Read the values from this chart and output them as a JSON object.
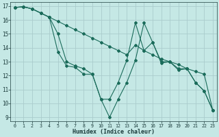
{
  "background_color": "#c5e8e5",
  "grid_color": "#aacccc",
  "line_color": "#1a6b5a",
  "xlabel": "Humidex (Indice chaleur)",
  "ylim": [
    8.7,
    17.3
  ],
  "xlim": [
    -0.5,
    23.5
  ],
  "yticks": [
    9,
    10,
    11,
    12,
    13,
    14,
    15,
    16,
    17
  ],
  "xticks": [
    0,
    1,
    2,
    3,
    4,
    5,
    6,
    7,
    8,
    9,
    10,
    11,
    12,
    13,
    14,
    15,
    16,
    17,
    18,
    19,
    20,
    21,
    22,
    23
  ],
  "line1_x": [
    0,
    1,
    2,
    3,
    4,
    5,
    6,
    7,
    8,
    9,
    10,
    11,
    12,
    13,
    14,
    15,
    16,
    17,
    18,
    19,
    20,
    21,
    22,
    23
  ],
  "line1_y": [
    16.9,
    16.95,
    16.8,
    16.5,
    16.2,
    15.9,
    15.6,
    15.3,
    15.0,
    14.7,
    14.4,
    14.1,
    13.8,
    13.5,
    14.2,
    13.8,
    13.5,
    13.2,
    13.0,
    12.8,
    12.5,
    12.3,
    12.1,
    9.5
  ],
  "line2_x": [
    0,
    1,
    2,
    3,
    4,
    5,
    6,
    7,
    8,
    9,
    10,
    11,
    12,
    13,
    14,
    15,
    16,
    17,
    18,
    19,
    20,
    21,
    22,
    23
  ],
  "line2_y": [
    16.9,
    16.95,
    16.8,
    16.5,
    16.2,
    15.0,
    13.0,
    12.7,
    12.5,
    12.1,
    10.3,
    10.3,
    11.5,
    13.1,
    15.8,
    13.8,
    14.4,
    13.0,
    13.0,
    12.5,
    12.5,
    11.5,
    10.9,
    9.5
  ],
  "line3_x": [
    0,
    1,
    2,
    3,
    4,
    5,
    6,
    7,
    8,
    9,
    10,
    11,
    12,
    13,
    14,
    15,
    16,
    17,
    18,
    19,
    20,
    21,
    22,
    23
  ],
  "line3_y": [
    16.9,
    16.95,
    16.8,
    16.5,
    16.2,
    13.7,
    12.7,
    12.6,
    12.1,
    12.1,
    10.3,
    9.0,
    10.3,
    11.5,
    13.1,
    15.8,
    14.4,
    12.9,
    13.0,
    12.4,
    12.5,
    11.5,
    10.9,
    9.5
  ]
}
